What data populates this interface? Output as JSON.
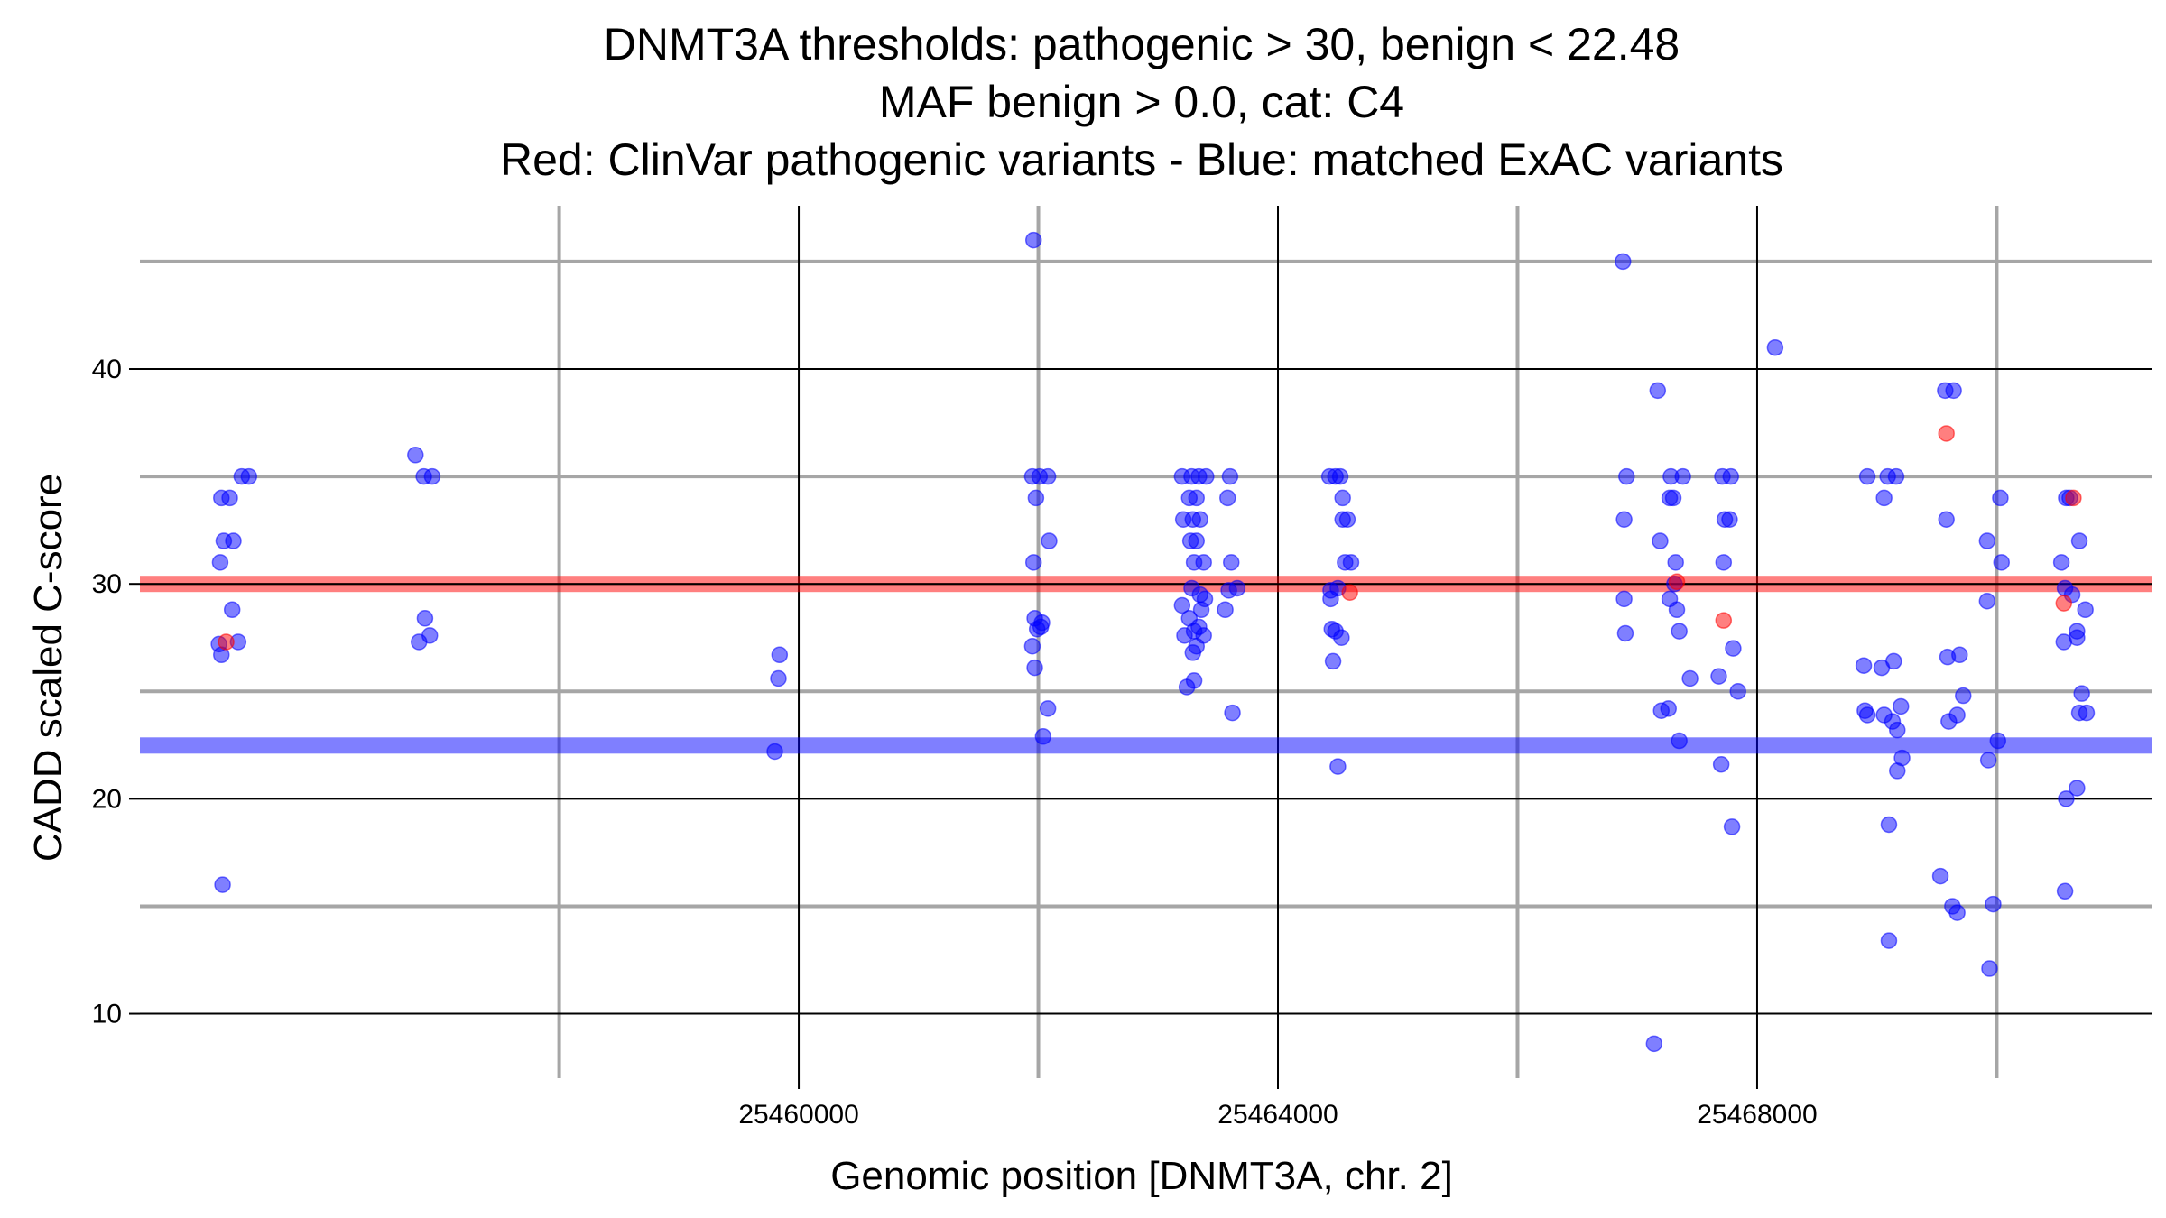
{
  "chart_data": {
    "type": "scatter",
    "title_lines": [
      "DNMT3A thresholds: pathogenic > 30, benign < 22.48",
      "MAF benign > 0.0, cat: C4",
      "Red: ClinVar pathogenic variants - Blue: matched ExAC variants"
    ],
    "xlabel": "Genomic position [DNMT3A, chr. 2]",
    "ylabel": "CADD scaled C-score",
    "xlim": [
      25454500,
      25471300
    ],
    "ylim": [
      7,
      47.6
    ],
    "x_major_ticks": [
      25460000,
      25464000,
      25468000
    ],
    "x_minor_ticks": [
      25458000,
      25462000,
      25466000,
      25470000
    ],
    "y_major_ticks": [
      10,
      20,
      30,
      40
    ],
    "y_minor_ticks": [
      15,
      25,
      35,
      45
    ],
    "grid": true,
    "thresholds": {
      "pathogenic": 30,
      "benign": 22.48
    },
    "colors": {
      "pathogenic": "#ff0000",
      "benign": "#0000ff",
      "grid_major": "#000000",
      "grid_minor": "#a6a6a6"
    },
    "series": [
      {
        "name": "ClinVar pathogenic variants",
        "points": [
          [
            25455220,
            27.3
          ],
          [
            25464600,
            29.6
          ],
          [
            25467330,
            30.1
          ],
          [
            25467720,
            28.3
          ],
          [
            25469580,
            37.0
          ],
          [
            25470560,
            29.1
          ],
          [
            25470640,
            34.0
          ]
        ]
      },
      {
        "name": "matched ExAC variants",
        "points": [
          [
            25455180,
            34.0
          ],
          [
            25455250,
            34.0
          ],
          [
            25455350,
            35.0
          ],
          [
            25455410,
            35.0
          ],
          [
            25455200,
            32.0
          ],
          [
            25455280,
            32.0
          ],
          [
            25455170,
            31.0
          ],
          [
            25455270,
            28.8
          ],
          [
            25455160,
            27.2
          ],
          [
            25455320,
            27.3
          ],
          [
            25455180,
            26.7
          ],
          [
            25455190,
            16.0
          ],
          [
            25456800,
            36.0
          ],
          [
            25456870,
            35.0
          ],
          [
            25456940,
            35.0
          ],
          [
            25456880,
            28.4
          ],
          [
            25456830,
            27.3
          ],
          [
            25456920,
            27.6
          ],
          [
            25459840,
            26.7
          ],
          [
            25459830,
            25.6
          ],
          [
            25459800,
            22.2
          ],
          [
            25461960,
            46.0
          ],
          [
            25461950,
            35.0
          ],
          [
            25462010,
            35.0
          ],
          [
            25462080,
            35.0
          ],
          [
            25461980,
            34.0
          ],
          [
            25462090,
            32.0
          ],
          [
            25461960,
            31.0
          ],
          [
            25461970,
            28.4
          ],
          [
            25462030,
            28.2
          ],
          [
            25461990,
            27.9
          ],
          [
            25462020,
            28.0
          ],
          [
            25461950,
            27.1
          ],
          [
            25461970,
            26.1
          ],
          [
            25462080,
            24.2
          ],
          [
            25462040,
            22.9
          ],
          [
            25463200,
            35.0
          ],
          [
            25463280,
            35.0
          ],
          [
            25463340,
            35.0
          ],
          [
            25463400,
            35.0
          ],
          [
            25463260,
            34.0
          ],
          [
            25463320,
            34.0
          ],
          [
            25463210,
            33.0
          ],
          [
            25463290,
            33.0
          ],
          [
            25463350,
            33.0
          ],
          [
            25463270,
            32.0
          ],
          [
            25463320,
            32.0
          ],
          [
            25463300,
            31.0
          ],
          [
            25463380,
            31.0
          ],
          [
            25463280,
            29.8
          ],
          [
            25463350,
            29.5
          ],
          [
            25463390,
            29.3
          ],
          [
            25463200,
            29.0
          ],
          [
            25463360,
            28.8
          ],
          [
            25463260,
            28.4
          ],
          [
            25463340,
            28.0
          ],
          [
            25463300,
            27.8
          ],
          [
            25463220,
            27.6
          ],
          [
            25463380,
            27.6
          ],
          [
            25463320,
            27.1
          ],
          [
            25463290,
            26.8
          ],
          [
            25463240,
            25.2
          ],
          [
            25463300,
            25.5
          ],
          [
            25463600,
            35.0
          ],
          [
            25463580,
            34.0
          ],
          [
            25463610,
            31.0
          ],
          [
            25463660,
            29.8
          ],
          [
            25463590,
            29.7
          ],
          [
            25463560,
            28.8
          ],
          [
            25463620,
            24.0
          ],
          [
            25464430,
            35.0
          ],
          [
            25464480,
            35.0
          ],
          [
            25464520,
            35.0
          ],
          [
            25464540,
            34.0
          ],
          [
            25464580,
            33.0
          ],
          [
            25464540,
            33.0
          ],
          [
            25464560,
            31.0
          ],
          [
            25464610,
            31.0
          ],
          [
            25464440,
            29.7
          ],
          [
            25464500,
            29.8
          ],
          [
            25464440,
            29.3
          ],
          [
            25464450,
            27.9
          ],
          [
            25464480,
            27.8
          ],
          [
            25464530,
            27.5
          ],
          [
            25464460,
            26.4
          ],
          [
            25464500,
            21.5
          ],
          [
            25466880,
            45.0
          ],
          [
            25467170,
            39.0
          ],
          [
            25466910,
            35.0
          ],
          [
            25467280,
            35.0
          ],
          [
            25467380,
            35.0
          ],
          [
            25467270,
            34.0
          ],
          [
            25467300,
            34.0
          ],
          [
            25466890,
            33.0
          ],
          [
            25467190,
            32.0
          ],
          [
            25467320,
            31.0
          ],
          [
            25467310,
            30.0
          ],
          [
            25466890,
            29.3
          ],
          [
            25467270,
            29.3
          ],
          [
            25467330,
            28.8
          ],
          [
            25467350,
            27.8
          ],
          [
            25466900,
            27.7
          ],
          [
            25467440,
            25.6
          ],
          [
            25467200,
            24.1
          ],
          [
            25467260,
            24.2
          ],
          [
            25467350,
            22.7
          ],
          [
            25467710,
            35.0
          ],
          [
            25467780,
            35.0
          ],
          [
            25467730,
            33.0
          ],
          [
            25467770,
            33.0
          ],
          [
            25467720,
            31.0
          ],
          [
            25467800,
            27.0
          ],
          [
            25467680,
            25.7
          ],
          [
            25467840,
            25.0
          ],
          [
            25467700,
            21.6
          ],
          [
            25467790,
            18.7
          ],
          [
            25468150,
            41.0
          ],
          [
            25468920,
            35.0
          ],
          [
            25469090,
            35.0
          ],
          [
            25469160,
            35.0
          ],
          [
            25469060,
            34.0
          ],
          [
            25469140,
            26.4
          ],
          [
            25468890,
            26.2
          ],
          [
            25469040,
            26.1
          ],
          [
            25469200,
            24.3
          ],
          [
            25468900,
            24.1
          ],
          [
            25468920,
            23.9
          ],
          [
            25469060,
            23.9
          ],
          [
            25469130,
            23.6
          ],
          [
            25469170,
            23.2
          ],
          [
            25469210,
            21.9
          ],
          [
            25469170,
            21.3
          ],
          [
            25469100,
            18.8
          ],
          [
            25469100,
            13.4
          ],
          [
            25469570,
            39.0
          ],
          [
            25469640,
            39.0
          ],
          [
            25469580,
            33.0
          ],
          [
            25469590,
            26.6
          ],
          [
            25469690,
            26.7
          ],
          [
            25469720,
            24.8
          ],
          [
            25469670,
            23.9
          ],
          [
            25469600,
            23.6
          ],
          [
            25469530,
            16.4
          ],
          [
            25469630,
            15.0
          ],
          [
            25469670,
            14.7
          ],
          [
            25470030,
            34.0
          ],
          [
            25469920,
            32.0
          ],
          [
            25470040,
            31.0
          ],
          [
            25469920,
            29.2
          ],
          [
            25470010,
            22.7
          ],
          [
            25469930,
            21.8
          ],
          [
            25469970,
            15.1
          ],
          [
            25469940,
            12.1
          ],
          [
            25470580,
            34.0
          ],
          [
            25470610,
            34.0
          ],
          [
            25470690,
            32.0
          ],
          [
            25470540,
            31.0
          ],
          [
            25470570,
            29.8
          ],
          [
            25470630,
            29.5
          ],
          [
            25470740,
            28.8
          ],
          [
            25470670,
            27.8
          ],
          [
            25470670,
            27.5
          ],
          [
            25470560,
            27.3
          ],
          [
            25470710,
            24.9
          ],
          [
            25470690,
            24.0
          ],
          [
            25470750,
            24.0
          ],
          [
            25470670,
            20.5
          ],
          [
            25470580,
            20.0
          ],
          [
            25470570,
            15.7
          ],
          [
            25467140,
            8.6
          ]
        ]
      }
    ]
  }
}
